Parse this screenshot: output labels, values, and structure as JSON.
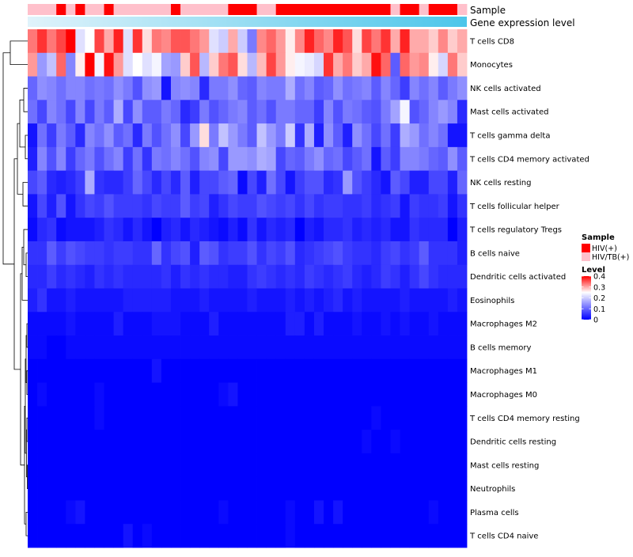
{
  "chart_data": {
    "type": "heatmap",
    "title": "",
    "annotation_tracks": [
      "Sample",
      "Gene expression level"
    ],
    "rows": [
      "T cells CD8",
      "Monocytes",
      "NK cells activated",
      "Mast cells activated",
      "T cells gamma delta",
      "T cells CD4 memory activated",
      "NK cells resting",
      "T cells follicular helper",
      "T cells regulatory  Tregs",
      "B cells naive",
      "Dendritic cells activated",
      "Eosinophils",
      "Macrophages M2",
      "B cells memory",
      "Macrophages M1",
      "Macrophages M0",
      "T cells CD4 memory resting",
      "Dendritic cells resting",
      "Mast cells resting",
      "Neutrophils",
      "Plasma cells",
      "T cells CD4 naive"
    ],
    "n_columns": 46,
    "sample_groups": [
      "HIV/TB(+)",
      "HIV/TB(+)",
      "HIV/TB(+)",
      "HIV(+)",
      "HIV/TB(+)",
      "HIV(+)",
      "HIV/TB(+)",
      "HIV/TB(+)",
      "HIV(+)",
      "HIV/TB(+)",
      "HIV/TB(+)",
      "HIV/TB(+)",
      "HIV/TB(+)",
      "HIV/TB(+)",
      "HIV/TB(+)",
      "HIV(+)",
      "HIV/TB(+)",
      "HIV/TB(+)",
      "HIV/TB(+)",
      "HIV/TB(+)",
      "HIV/TB(+)",
      "HIV(+)",
      "HIV(+)",
      "HIV(+)",
      "HIV/TB(+)",
      "HIV/TB(+)",
      "HIV(+)",
      "HIV(+)",
      "HIV(+)",
      "HIV(+)",
      "HIV(+)",
      "HIV(+)",
      "HIV(+)",
      "HIV(+)",
      "HIV(+)",
      "HIV(+)",
      "HIV(+)",
      "HIV(+)",
      "HIV/TB(+)",
      "HIV(+)",
      "HIV(+)",
      "HIV/TB(+)",
      "HIV(+)",
      "HIV(+)",
      "HIV(+)",
      "HIV/TB(+)"
    ],
    "values": [
      [
        0.33,
        0.37,
        0.33,
        0.36,
        0.4,
        0.22,
        0.25,
        0.36,
        0.3,
        0.38,
        0.22,
        0.37,
        0.27,
        0.33,
        0.32,
        0.35,
        0.35,
        0.33,
        0.31,
        0.22,
        0.2,
        0.3,
        0.2,
        0.12,
        0.32,
        0.34,
        0.31,
        0.26,
        0.32,
        0.38,
        0.34,
        0.32,
        0.38,
        0.35,
        0.27,
        0.36,
        0.33,
        0.37,
        0.3,
        0.38,
        0.3,
        0.3,
        0.28,
        0.32,
        0.28,
        0.3
      ],
      [
        0.31,
        0.15,
        0.19,
        0.34,
        0.13,
        0.26,
        0.4,
        0.24,
        0.39,
        0.31,
        0.22,
        0.25,
        0.22,
        0.24,
        0.16,
        0.15,
        0.28,
        0.35,
        0.18,
        0.28,
        0.33,
        0.35,
        0.27,
        0.18,
        0.29,
        0.36,
        0.31,
        0.26,
        0.24,
        0.23,
        0.21,
        0.37,
        0.3,
        0.33,
        0.28,
        0.3,
        0.39,
        0.34,
        0.09,
        0.34,
        0.31,
        0.32,
        0.26,
        0.21,
        0.33,
        0.28
      ],
      [
        0.1,
        0.14,
        0.13,
        0.11,
        0.13,
        0.13,
        0.11,
        0.12,
        0.11,
        0.14,
        0.12,
        0.08,
        0.14,
        0.15,
        0.02,
        0.13,
        0.14,
        0.13,
        0.04,
        0.12,
        0.12,
        0.14,
        0.1,
        0.09,
        0.13,
        0.12,
        0.12,
        0.17,
        0.11,
        0.13,
        0.09,
        0.1,
        0.14,
        0.11,
        0.12,
        0.13,
        0.09,
        0.13,
        0.1,
        0.06,
        0.13,
        0.11,
        0.13,
        0.09,
        0.12,
        0.14
      ],
      [
        0.11,
        0.07,
        0.13,
        0.11,
        0.07,
        0.13,
        0.07,
        0.12,
        0.09,
        0.17,
        0.07,
        0.14,
        0.09,
        0.09,
        0.12,
        0.1,
        0.04,
        0.06,
        0.12,
        0.08,
        0.1,
        0.12,
        0.13,
        0.09,
        0.11,
        0.08,
        0.12,
        0.12,
        0.1,
        0.1,
        0.06,
        0.13,
        0.08,
        0.12,
        0.11,
        0.09,
        0.08,
        0.12,
        0.16,
        0.24,
        0.08,
        0.1,
        0.13,
        0.15,
        0.13,
        0.04
      ],
      [
        0.02,
        0.11,
        0.06,
        0.12,
        0.09,
        0.04,
        0.13,
        0.11,
        0.14,
        0.09,
        0.11,
        0.04,
        0.12,
        0.08,
        0.11,
        0.14,
        0.07,
        0.15,
        0.27,
        0.12,
        0.19,
        0.15,
        0.12,
        0.09,
        0.19,
        0.15,
        0.12,
        0.2,
        0.05,
        0.17,
        0.03,
        0.14,
        0.09,
        0.03,
        0.14,
        0.11,
        0.07,
        0.11,
        0.06,
        0.17,
        0.15,
        0.11,
        0.13,
        0.11,
        0.02,
        0.02
      ],
      [
        0.03,
        0.13,
        0.08,
        0.13,
        0.06,
        0.1,
        0.12,
        0.08,
        0.11,
        0.13,
        0.06,
        0.11,
        0.05,
        0.12,
        0.11,
        0.13,
        0.11,
        0.08,
        0.13,
        0.14,
        0.07,
        0.15,
        0.15,
        0.14,
        0.17,
        0.16,
        0.07,
        0.1,
        0.09,
        0.12,
        0.14,
        0.1,
        0.11,
        0.07,
        0.09,
        0.11,
        0.02,
        0.09,
        0.06,
        0.13,
        0.13,
        0.12,
        0.1,
        0.09,
        0.14,
        0.09
      ],
      [
        0.07,
        0.09,
        0.04,
        0.03,
        0.04,
        0.06,
        0.17,
        0.05,
        0.04,
        0.04,
        0.06,
        0.1,
        0.07,
        0.04,
        0.07,
        0.04,
        0.09,
        0.03,
        0.07,
        0.07,
        0.09,
        0.1,
        0.01,
        0.07,
        0.03,
        0.11,
        0.07,
        0.02,
        0.06,
        0.08,
        0.08,
        0.04,
        0.05,
        0.15,
        0.08,
        0.06,
        0.04,
        0.02,
        0.09,
        0.07,
        0.03,
        0.03,
        0.07,
        0.07,
        0.03,
        0.1
      ],
      [
        0.02,
        0.07,
        0.03,
        0.08,
        0.02,
        0.05,
        0.07,
        0.06,
        0.08,
        0.06,
        0.06,
        0.06,
        0.05,
        0.07,
        0.06,
        0.06,
        0.09,
        0.06,
        0.07,
        0.03,
        0.05,
        0.07,
        0.06,
        0.06,
        0.08,
        0.07,
        0.06,
        0.07,
        0.05,
        0.07,
        0.05,
        0.06,
        0.06,
        0.05,
        0.05,
        0.06,
        0.04,
        0.05,
        0.06,
        0.02,
        0.06,
        0.05,
        0.05,
        0.06,
        0.02,
        0.05
      ],
      [
        0.01,
        0.04,
        0.05,
        0.01,
        0.02,
        0.02,
        0.02,
        0.03,
        0.05,
        0.04,
        0.02,
        0.04,
        0.02,
        0.0,
        0.03,
        0.04,
        0.02,
        0.04,
        0.03,
        0.02,
        0.01,
        0.03,
        0.01,
        0.05,
        0.02,
        0.04,
        0.03,
        0.04,
        0.0,
        0.03,
        0.02,
        0.04,
        0.04,
        0.05,
        0.03,
        0.04,
        0.03,
        0.04,
        0.02,
        0.02,
        0.05,
        0.04,
        0.04,
        0.04,
        0.0,
        0.03
      ],
      [
        0.05,
        0.05,
        0.09,
        0.06,
        0.08,
        0.07,
        0.06,
        0.06,
        0.05,
        0.06,
        0.06,
        0.05,
        0.05,
        0.1,
        0.05,
        0.07,
        0.08,
        0.03,
        0.09,
        0.08,
        0.05,
        0.06,
        0.06,
        0.08,
        0.05,
        0.07,
        0.06,
        0.08,
        0.04,
        0.05,
        0.06,
        0.07,
        0.08,
        0.06,
        0.05,
        0.05,
        0.04,
        0.06,
        0.07,
        0.05,
        0.06,
        0.09,
        0.05,
        0.05,
        0.05,
        0.03
      ],
      [
        0.04,
        0.04,
        0.06,
        0.04,
        0.05,
        0.04,
        0.03,
        0.05,
        0.04,
        0.05,
        0.04,
        0.04,
        0.04,
        0.04,
        0.05,
        0.03,
        0.05,
        0.04,
        0.05,
        0.04,
        0.04,
        0.03,
        0.03,
        0.05,
        0.06,
        0.05,
        0.04,
        0.05,
        0.04,
        0.06,
        0.05,
        0.04,
        0.05,
        0.06,
        0.04,
        0.03,
        0.04,
        0.06,
        0.05,
        0.03,
        0.05,
        0.07,
        0.05,
        0.04,
        0.04,
        0.04
      ],
      [
        0.03,
        0.05,
        0.02,
        0.02,
        0.03,
        0.02,
        0.02,
        0.02,
        0.02,
        0.02,
        0.03,
        0.03,
        0.03,
        0.03,
        0.03,
        0.02,
        0.02,
        0.02,
        0.03,
        0.02,
        0.02,
        0.02,
        0.02,
        0.03,
        0.02,
        0.02,
        0.02,
        0.03,
        0.02,
        0.03,
        0.02,
        0.03,
        0.04,
        0.02,
        0.03,
        0.02,
        0.02,
        0.02,
        0.02,
        0.03,
        0.02,
        0.02,
        0.02,
        0.02,
        0.03,
        0.02
      ],
      [
        0.01,
        0.01,
        0.01,
        0.01,
        0.02,
        0.01,
        0.01,
        0.01,
        0.01,
        0.03,
        0.01,
        0.01,
        0.01,
        0.02,
        0.02,
        0.02,
        0.01,
        0.01,
        0.01,
        0.03,
        0.01,
        0.01,
        0.01,
        0.01,
        0.01,
        0.01,
        0.01,
        0.03,
        0.03,
        0.01,
        0.03,
        0.01,
        0.01,
        0.01,
        0.02,
        0.01,
        0.01,
        0.02,
        0.01,
        0.02,
        0.01,
        0.01,
        0.02,
        0.01,
        0.01,
        0.01
      ],
      [
        0.01,
        0.01,
        0.0,
        0.0,
        0.01,
        0.01,
        0.01,
        0.01,
        0.01,
        0.01,
        0.01,
        0.01,
        0.01,
        0.01,
        0.01,
        0.01,
        0.01,
        0.01,
        0.01,
        0.01,
        0.01,
        0.01,
        0.01,
        0.01,
        0.01,
        0.01,
        0.01,
        0.01,
        0.01,
        0.01,
        0.01,
        0.01,
        0.01,
        0.01,
        0.01,
        0.01,
        0.01,
        0.01,
        0.01,
        0.01,
        0.01,
        0.01,
        0.01,
        0.01,
        0.01,
        0.01
      ],
      [
        0.0,
        0.0,
        0.0,
        0.0,
        0.0,
        0.0,
        0.0,
        0.0,
        0.0,
        0.0,
        0.0,
        0.0,
        0.0,
        0.02,
        0.0,
        0.0,
        0.0,
        0.0,
        0.0,
        0.0,
        0.0,
        0.0,
        0.0,
        0.0,
        0.0,
        0.0,
        0.0,
        0.0,
        0.0,
        0.0,
        0.0,
        0.0,
        0.0,
        0.0,
        0.0,
        0.0,
        0.0,
        0.0,
        0.0,
        0.0,
        0.0,
        0.0,
        0.0,
        0.0,
        0.0,
        0.0
      ],
      [
        0.0,
        0.01,
        0.0,
        0.0,
        0.0,
        0.0,
        0.0,
        0.01,
        0.0,
        0.0,
        0.0,
        0.0,
        0.0,
        0.0,
        0.0,
        0.0,
        0.0,
        0.0,
        0.0,
        0.0,
        0.01,
        0.02,
        0.0,
        0.0,
        0.0,
        0.0,
        0.0,
        0.0,
        0.0,
        0.0,
        0.0,
        0.0,
        0.0,
        0.0,
        0.0,
        0.0,
        0.0,
        0.0,
        0.0,
        0.0,
        0.0,
        0.0,
        0.0,
        0.0,
        0.0,
        0.0
      ],
      [
        0.0,
        0.0,
        0.0,
        0.0,
        0.0,
        0.0,
        0.0,
        0.01,
        0.0,
        0.0,
        0.0,
        0.0,
        0.0,
        0.0,
        0.0,
        0.0,
        0.0,
        0.0,
        0.0,
        0.0,
        0.0,
        0.0,
        0.0,
        0.0,
        0.0,
        0.0,
        0.0,
        0.0,
        0.0,
        0.0,
        0.0,
        0.0,
        0.0,
        0.0,
        0.0,
        0.0,
        0.01,
        0.0,
        0.0,
        0.0,
        0.0,
        0.0,
        0.0,
        0.0,
        0.0,
        0.0
      ],
      [
        0.0,
        0.0,
        0.0,
        0.0,
        0.0,
        0.0,
        0.0,
        0.0,
        0.0,
        0.0,
        0.0,
        0.0,
        0.0,
        0.0,
        0.0,
        0.0,
        0.0,
        0.0,
        0.0,
        0.0,
        0.0,
        0.0,
        0.0,
        0.0,
        0.0,
        0.0,
        0.0,
        0.0,
        0.0,
        0.0,
        0.0,
        0.0,
        0.0,
        0.0,
        0.0,
        0.01,
        0.0,
        0.0,
        0.01,
        0.0,
        0.0,
        0.0,
        0.0,
        0.0,
        0.0,
        0.0
      ],
      [
        0.0,
        0.0,
        0.0,
        0.0,
        0.0,
        0.0,
        0.0,
        0.0,
        0.0,
        0.0,
        0.0,
        0.0,
        0.0,
        0.0,
        0.0,
        0.0,
        0.0,
        0.0,
        0.0,
        0.0,
        0.0,
        0.0,
        0.0,
        0.0,
        0.0,
        0.0,
        0.0,
        0.0,
        0.0,
        0.0,
        0.0,
        0.0,
        0.0,
        0.0,
        0.0,
        0.0,
        0.0,
        0.0,
        0.0,
        0.0,
        0.0,
        0.0,
        0.0,
        0.0,
        0.0,
        0.0
      ],
      [
        0.0,
        0.0,
        0.0,
        0.0,
        0.0,
        0.0,
        0.0,
        0.0,
        0.0,
        0.0,
        0.0,
        0.0,
        0.0,
        0.0,
        0.0,
        0.0,
        0.0,
        0.0,
        0.0,
        0.0,
        0.0,
        0.0,
        0.0,
        0.0,
        0.0,
        0.0,
        0.0,
        0.0,
        0.0,
        0.0,
        0.0,
        0.0,
        0.0,
        0.0,
        0.0,
        0.0,
        0.0,
        0.0,
        0.0,
        0.0,
        0.0,
        0.0,
        0.0,
        0.0,
        0.0,
        0.0
      ],
      [
        0.0,
        0.0,
        0.0,
        0.0,
        0.01,
        0.02,
        0.0,
        0.0,
        0.0,
        0.0,
        0.0,
        0.0,
        0.0,
        0.0,
        0.0,
        0.0,
        0.0,
        0.0,
        0.0,
        0.0,
        0.01,
        0.0,
        0.0,
        0.0,
        0.0,
        0.0,
        0.0,
        0.01,
        0.0,
        0.0,
        0.02,
        0.0,
        0.02,
        0.0,
        0.0,
        0.0,
        0.0,
        0.0,
        0.0,
        0.0,
        0.0,
        0.0,
        0.01,
        0.0,
        0.0,
        0.0
      ],
      [
        0.0,
        0.0,
        0.0,
        0.0,
        0.0,
        0.0,
        0.0,
        0.0,
        0.0,
        0.0,
        0.02,
        0.0,
        0.01,
        0.0,
        0.0,
        0.0,
        0.0,
        0.0,
        0.0,
        0.0,
        0.0,
        0.0,
        0.0,
        0.0,
        0.0,
        0.0,
        0.0,
        0.01,
        0.0,
        0.0,
        0.0,
        0.0,
        0.0,
        0.0,
        0.0,
        0.0,
        0.0,
        0.0,
        0.0,
        0.0,
        0.0,
        0.0,
        0.0,
        0.0,
        0.0,
        0.0
      ]
    ],
    "legend": {
      "sample_title": "Sample",
      "sample_entries": [
        {
          "label": "HIV(+)",
          "color": "#ff0000"
        },
        {
          "label": "HIV/TB(+)",
          "color": "#ffc0cb"
        }
      ],
      "level_title": "Level",
      "level_ticks": [
        "0.4",
        "0.3",
        "0.2",
        "0.1",
        "0"
      ],
      "level_tick_values": [
        0.4,
        0.3,
        0.2,
        0.1,
        0
      ],
      "level_range": [
        0,
        0.4
      ],
      "legend_position": "right"
    },
    "color_scale": {
      "low": "#0000ff",
      "mid": "#ffffff",
      "high": "#ff0000",
      "mid_value": 0.25
    },
    "expression_bar_colors": {
      "start": "#e0f3fb",
      "end": "#4cc6ea"
    }
  }
}
